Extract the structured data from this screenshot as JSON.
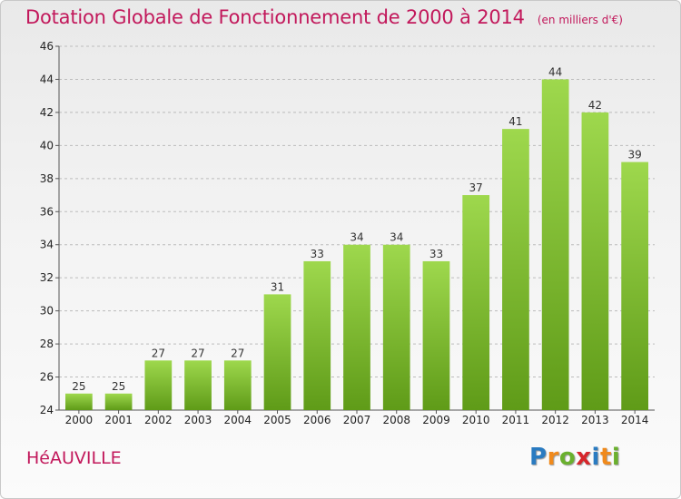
{
  "header": {
    "title": "Dotation Globale de Fonctionnement de 2000 à 2014",
    "unit": "(en milliers d'€)"
  },
  "footer": {
    "commune": "HéAUVILLE",
    "brand": "Proxiti",
    "brand_letters": [
      {
        "ch": "P",
        "color": "#2a7bc1"
      },
      {
        "ch": "r",
        "color": "#f08a1c"
      },
      {
        "ch": "o",
        "color": "#6ab02e"
      },
      {
        "ch": "x",
        "color": "#d6262b"
      },
      {
        "ch": "i",
        "color": "#2a7bc1"
      },
      {
        "ch": "t",
        "color": "#f08a1c"
      },
      {
        "ch": "i",
        "color": "#6ab02e"
      }
    ]
  },
  "colors": {
    "bar_light": "#9ed84d",
    "bar_dark": "#5f9b18",
    "title": "#c2185b",
    "grid": "#bcbcbc",
    "axis": "#555555"
  },
  "chart_data": {
    "type": "bar",
    "title": "Dotation Globale de Fonctionnement de 2000 à 2014",
    "subtitle": "(en milliers d'€)",
    "xlabel": "",
    "ylabel": "",
    "categories": [
      "2000",
      "2001",
      "2002",
      "2003",
      "2004",
      "2005",
      "2006",
      "2007",
      "2008",
      "2009",
      "2010",
      "2011",
      "2012",
      "2013",
      "2014"
    ],
    "values": [
      25,
      25,
      27,
      27,
      27,
      31,
      33,
      34,
      34,
      33,
      37,
      41,
      44,
      42,
      39
    ],
    "ylim": [
      24,
      46
    ],
    "yticks": [
      24,
      26,
      28,
      30,
      32,
      34,
      36,
      38,
      40,
      42,
      44,
      46
    ],
    "grid": true,
    "grid_style": "dashed horizontal",
    "legend": "none"
  }
}
